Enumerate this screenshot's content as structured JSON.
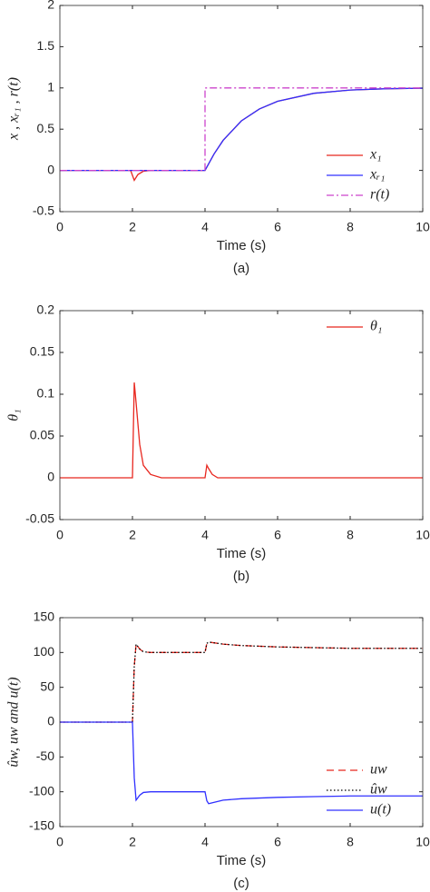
{
  "chart_data": [
    {
      "type": "line",
      "caption": "(a)",
      "xlabel": "Time (s)",
      "ylabel": "x , xᵣ₁ , r(t)",
      "xlim": [
        0,
        10
      ],
      "ylim": [
        -0.5,
        2
      ],
      "xticks": [
        0,
        2,
        4,
        6,
        8,
        10
      ],
      "yticks": [
        -0.5,
        0,
        0.5,
        1,
        1.5,
        2
      ],
      "legend": "lower right",
      "grid": false,
      "series": [
        {
          "name": "x₁",
          "color": "#e8271f",
          "line_style": "solid",
          "x": [
            0,
            1.95,
            2.05,
            2.15,
            2.3,
            2.5,
            4,
            4.25,
            4.5,
            5,
            5.5,
            6,
            7,
            8,
            9,
            10
          ],
          "values": [
            0,
            0,
            -0.12,
            -0.05,
            -0.01,
            0,
            0,
            0.2,
            0.365,
            0.6,
            0.745,
            0.838,
            0.935,
            0.974,
            0.99,
            0.996
          ]
        },
        {
          "name": "xᵣ₁",
          "color": "#3030ff",
          "line_style": "solid",
          "x": [
            0,
            4,
            4.25,
            4.5,
            5,
            5.5,
            6,
            7,
            8,
            9,
            10
          ],
          "values": [
            0,
            0,
            0.2,
            0.365,
            0.6,
            0.745,
            0.838,
            0.935,
            0.974,
            0.99,
            0.996
          ]
        },
        {
          "name": "r(t)",
          "color": "#cc44cc",
          "line_style": "dashdot",
          "x": [
            0,
            4,
            4,
            10
          ],
          "values": [
            0,
            0,
            1,
            1
          ]
        }
      ]
    },
    {
      "type": "line",
      "caption": "(b)",
      "xlabel": "Time (s)",
      "ylabel": "θ₁",
      "xlim": [
        0,
        10
      ],
      "ylim": [
        -0.05,
        0.2
      ],
      "xticks": [
        0,
        2,
        4,
        6,
        8,
        10
      ],
      "yticks": [
        -0.05,
        0,
        0.05,
        0.1,
        0.15,
        0.2
      ],
      "legend": "upper right",
      "grid": false,
      "series": [
        {
          "name": "θ₁",
          "color": "#e8271f",
          "line_style": "solid",
          "x": [
            0,
            2,
            2.05,
            2.1,
            2.2,
            2.3,
            2.5,
            2.8,
            4,
            4.05,
            4.1,
            4.2,
            4.35,
            10
          ],
          "values": [
            0,
            0,
            0.114,
            0.09,
            0.04,
            0.015,
            0.004,
            0,
            0,
            0.015,
            0.011,
            0.004,
            0,
            0
          ]
        }
      ]
    },
    {
      "type": "line",
      "caption": "(c)",
      "xlabel": "Time (s)",
      "ylabel": "ûw, uw and u(t)",
      "xlim": [
        0,
        10
      ],
      "ylim": [
        -150,
        150
      ],
      "xticks": [
        0,
        2,
        4,
        6,
        8,
        10
      ],
      "yticks": [
        -150,
        -100,
        -50,
        0,
        50,
        100,
        150
      ],
      "legend": "lower right",
      "grid": false,
      "series": [
        {
          "name": "uw",
          "color": "#e8271f",
          "line_style": "dashed",
          "x": [
            0,
            2,
            2.05,
            2.1,
            2.2,
            2.3,
            2.5,
            3,
            4,
            4.05,
            4.1,
            4.5,
            5,
            6,
            7,
            8,
            10
          ],
          "values": [
            0,
            0,
            80,
            112,
            105,
            101,
            100,
            100,
            100,
            113,
            115,
            112,
            110,
            108,
            107,
            106,
            106
          ]
        },
        {
          "name": "ûw",
          "color": "#000000",
          "line_style": "dotted",
          "x": [
            0,
            2,
            2.05,
            2.1,
            2.2,
            2.3,
            2.5,
            3,
            4,
            4.05,
            4.1,
            4.5,
            5,
            6,
            7,
            8,
            10
          ],
          "values": [
            0,
            0,
            80,
            112,
            105,
            101,
            100,
            100,
            100,
            113,
            115,
            112,
            110,
            108,
            107,
            106,
            106
          ]
        },
        {
          "name": "u(t)",
          "color": "#3030ff",
          "line_style": "solid",
          "x": [
            0,
            2,
            2.05,
            2.1,
            2.2,
            2.3,
            2.5,
            3,
            4,
            4.05,
            4.1,
            4.5,
            5,
            6,
            7,
            8,
            10
          ],
          "values": [
            0,
            0,
            -80,
            -112,
            -105,
            -101,
            -100,
            -100,
            -100,
            -113,
            -117,
            -112,
            -110,
            -108,
            -107,
            -106,
            -106
          ]
        }
      ]
    }
  ]
}
